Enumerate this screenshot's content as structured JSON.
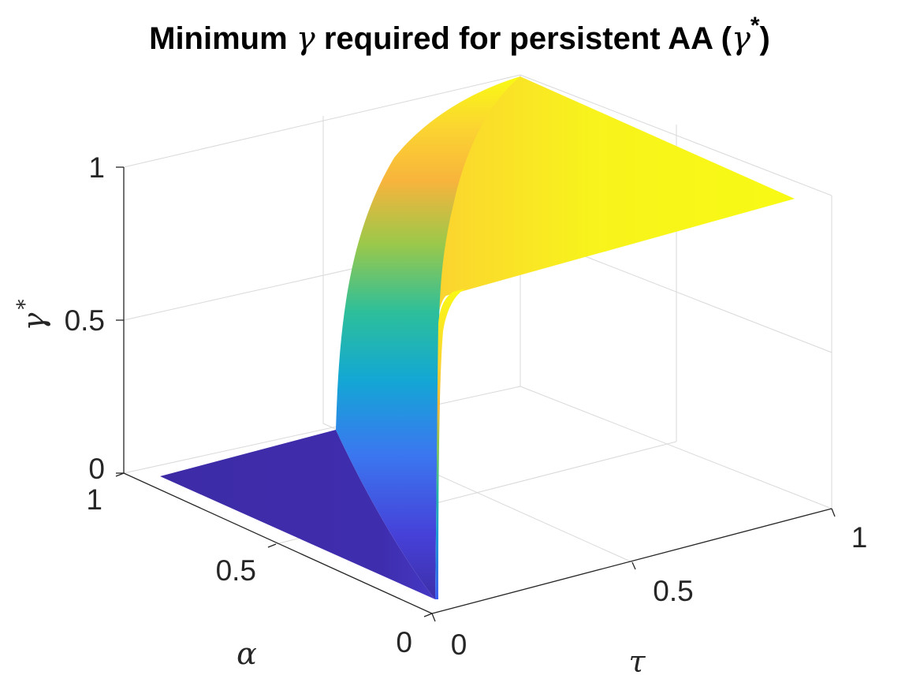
{
  "chart_data": {
    "type": "surface",
    "title_main": "Minimum",
    "title_symbol": "γ",
    "title_rest": "required for persistent AA (",
    "title_symbol2": "γ",
    "title_star": "*",
    "title_close": ")",
    "xlabel": "τ",
    "ylabel": "α",
    "zlabel": "γ",
    "zlabel_star": "*",
    "x_ticks": [
      "0",
      "0.5",
      "1"
    ],
    "y_ticks": [
      "0",
      "0.5",
      "1"
    ],
    "z_ticks": [
      "0",
      "0.5",
      "1"
    ],
    "xlim": [
      0,
      1
    ],
    "ylim": [
      0,
      1
    ],
    "zlim": [
      0,
      1
    ],
    "grid": true,
    "colormap": "parula",
    "surface_description_values": {
      "tau_threshold_at_alpha0": 0.0,
      "tau_threshold_at_alpha1": 0.28,
      "low_plateau_value": 0.0,
      "high_plateau_value": 1.0
    }
  }
}
